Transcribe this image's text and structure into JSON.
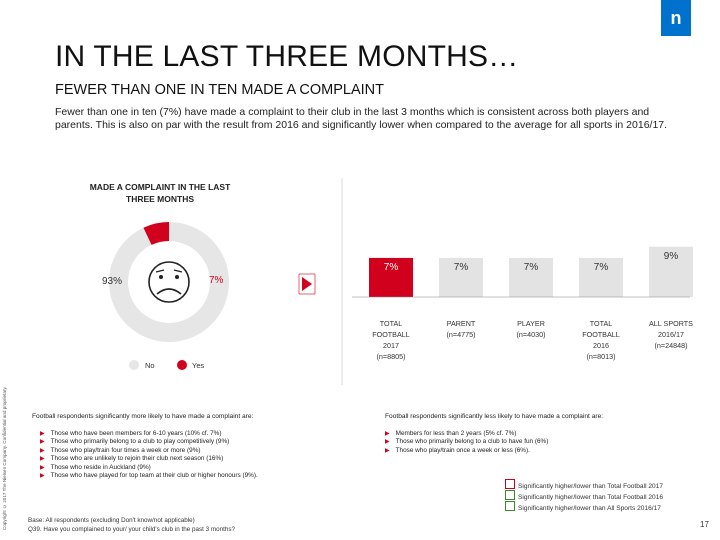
{
  "header": {
    "logo_letter": "n",
    "title": "IN THE LAST THREE MONTHS…",
    "subtitle": "FEWER THAN ONE IN TEN MADE A COMPLAINT",
    "intro": "Fewer than one in ten (7%) have made a complaint to their club in the last 3 months which is consistent across both players and parents. This is also on par with the result from 2016 and significantly lower when compared to the average for all sports in 2016/17."
  },
  "copyright": "Copyright © 2017 The Nielsen Company. Confidential and proprietary.",
  "colors": {
    "brand_blue": "#0072ce",
    "accent_red": "#d1001c",
    "gray_bar": "#e3e3e3",
    "gray_donut": "#e6e6e6",
    "box_green": "#3a8a2e"
  },
  "chart_data": [
    {
      "type": "pie",
      "title": "MADE A COMPLAINT IN THE LAST THREE MONTHS",
      "slices": [
        {
          "label": "No",
          "value": 93,
          "display": "93%"
        },
        {
          "label": "Yes",
          "value": 7,
          "display": "7%"
        }
      ],
      "legend": [
        "No",
        "Yes"
      ],
      "icon": "sad-face-icon"
    },
    {
      "type": "bar",
      "categories": [
        {
          "line1": "TOTAL",
          "line2": "FOOTBALL",
          "line3": "2017",
          "n": "(n=8805)"
        },
        {
          "line1": "PARENT",
          "line2": "(n=4775)",
          "line3": "",
          "n": ""
        },
        {
          "line1": "PLAYER",
          "line2": "(n=4030)",
          "line3": "",
          "n": ""
        },
        {
          "line1": "TOTAL",
          "line2": "FOOTBALL",
          "line3": "2016",
          "n": "(n=8013)"
        },
        {
          "line1": "ALL SPORTS",
          "line2": "2016/17",
          "line3": "(n=24848)",
          "n": ""
        }
      ],
      "values": [
        7,
        7,
        7,
        7,
        9
      ],
      "labels": [
        "7%",
        "7%",
        "7%",
        "7%",
        "9%"
      ],
      "ylim": [
        0,
        12
      ],
      "highlight_index": 0
    }
  ],
  "findings_left": {
    "heading": "Football respondents significantly more likely to have made a complaint are:",
    "items": [
      "Those who have been members for 6-10 years (10% cf. 7%)",
      "Those who primarily belong to a club to play competitively (9%)",
      "Those who play/train four times a week or more (9%)",
      "Those who are unlikely to rejoin their club next season (16%)",
      "Those who reside in Auckland (9%)",
      "Those who have played for top team at their club or higher honours (9%)."
    ]
  },
  "findings_right": {
    "heading": "Football respondents significantly less likely to have made a complaint are:",
    "items": [
      "Members for less than 2 years (5% cf. 7%)",
      "Those who primarily belong to a club to have fun (6%)",
      "Those who play/train once a week or less (6%)."
    ]
  },
  "base_note": {
    "line1": "Base: All respondents (excluding Don't know/not applicable)",
    "line2": "Q39. Have you complained to your/ your child's club in the past 3 months?"
  },
  "sig_legend": [
    "Significantly higher/lower than Total Football 2017",
    "Significantly higher/lower than Total Football 2016",
    "Significantly higher/lower than All Sports 2016/17"
  ],
  "page_number": "17"
}
